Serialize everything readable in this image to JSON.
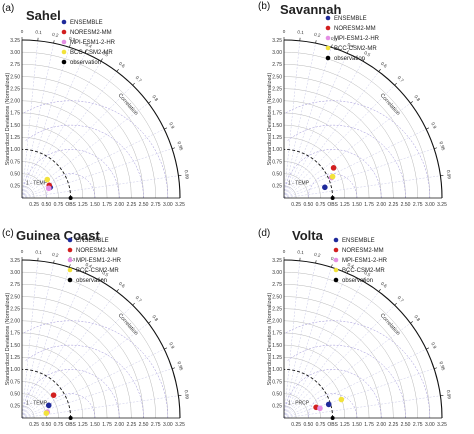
{
  "figure": {
    "ylabel": "Standardized Deviations (Normalized)",
    "correlation_label": "Correlation",
    "obs_label": "OBS",
    "legend": [
      {
        "label": "ENSEMBLE",
        "color": "#1f2a9a"
      },
      {
        "label": "NORESM2-MM",
        "color": "#d21f1f"
      },
      {
        "label": "MPI-ESM1-2-HR",
        "color": "#e48fe4"
      },
      {
        "label": "BCC-CSM2-MR",
        "color": "#f2e23a"
      },
      {
        "label": "observation",
        "color": "#000000"
      }
    ]
  },
  "chart_data": [
    {
      "type": "taylor",
      "panel": "(a)",
      "title": "Sahel",
      "variable": "1 - TEMP",
      "x_ticks": [
        "0.25",
        "0.50",
        "0.75",
        "OBS",
        "1.25",
        "1.50",
        "1.75",
        "2.00",
        "2.25",
        "2.50",
        "2.75",
        "3.00",
        "3.25"
      ],
      "y_ticks": [
        "0.25",
        "0.50",
        "0.75",
        "1.00",
        "1.25",
        "1.50",
        "1.75",
        "2.00",
        "2.25",
        "2.50",
        "2.75",
        "3.00",
        "3.25"
      ],
      "corr_ticks": [
        "0",
        "0.1",
        "0.2",
        "0.3",
        "0.4",
        "0.5",
        "0.6",
        "0.7",
        "0.8",
        "0.9",
        "0.95",
        "0.99"
      ],
      "max_sd": 3.25,
      "observation": {
        "sd": 1.0,
        "corr": 1.0
      },
      "points": [
        {
          "model": "ENSEMBLE",
          "x": 0.58,
          "y": 0.22
        },
        {
          "model": "NORESM2-MM",
          "x": 0.56,
          "y": 0.26
        },
        {
          "model": "MPI-ESM1-2-HR",
          "x": 0.55,
          "y": 0.2
        },
        {
          "model": "BCC-CSM2-MR",
          "x": 0.52,
          "y": 0.38
        }
      ]
    },
    {
      "type": "taylor",
      "panel": "(b)",
      "title": "Savannah",
      "variable": "1 - TEMP",
      "x_ticks": [
        "0.25",
        "0.50",
        "0.75",
        "OBS",
        "1.25",
        "1.50",
        "1.75",
        "2.00",
        "2.25",
        "2.50",
        "2.75",
        "3.00",
        "3.25"
      ],
      "y_ticks": [
        "0.25",
        "0.50",
        "0.75",
        "1.00",
        "1.25",
        "1.50",
        "1.75",
        "2.00",
        "2.25",
        "2.50",
        "2.75",
        "3.00",
        "3.25"
      ],
      "corr_ticks": [
        "0",
        "0.1",
        "0.2",
        "0.3",
        "0.4",
        "0.5",
        "0.6",
        "0.7",
        "0.8",
        "0.9",
        "0.95",
        "0.99"
      ],
      "max_sd": 3.25,
      "observation": {
        "sd": 1.0,
        "corr": 1.0
      },
      "points": [
        {
          "model": "ENSEMBLE",
          "x": 0.84,
          "y": 0.22
        },
        {
          "model": "NORESM2-MM",
          "x": 1.02,
          "y": 0.62
        },
        {
          "model": "MPI-ESM1-2-HR",
          "x": 0.98,
          "y": 0.42
        },
        {
          "model": "BCC-CSM2-MR",
          "x": 1.0,
          "y": 0.44
        }
      ]
    },
    {
      "type": "taylor",
      "panel": "(c)",
      "title": "Guinea Coast",
      "variable": "1 - TEMP",
      "x_ticks": [
        "0.25",
        "0.50",
        "0.75",
        "OBS",
        "1.25",
        "1.50",
        "1.75",
        "2.00",
        "2.25",
        "2.50",
        "2.75",
        "3.00",
        "3.25"
      ],
      "y_ticks": [
        "0.25",
        "0.50",
        "0.75",
        "1.00",
        "1.25",
        "1.50",
        "1.75",
        "2.00",
        "2.25",
        "2.50",
        "2.75",
        "3.00",
        "3.25"
      ],
      "corr_ticks": [
        "0",
        "0.1",
        "0.2",
        "0.3",
        "0.4",
        "0.5",
        "0.6",
        "0.7",
        "0.8",
        "0.9",
        "0.95",
        "0.99"
      ],
      "max_sd": 3.25,
      "observation": {
        "sd": 1.0,
        "corr": 1.0
      },
      "points": [
        {
          "model": "ENSEMBLE",
          "x": 0.55,
          "y": 0.26
        },
        {
          "model": "NORESM2-MM",
          "x": 0.65,
          "y": 0.47
        },
        {
          "model": "MPI-ESM1-2-HR",
          "x": 0.52,
          "y": 0.12
        },
        {
          "model": "BCC-CSM2-MR",
          "x": 0.5,
          "y": 0.1
        }
      ]
    },
    {
      "type": "taylor",
      "panel": "(d)",
      "title": "Volta",
      "variable": "1 - PRCP",
      "x_ticks": [
        "0.25",
        "0.50",
        "0.75",
        "OBS",
        "1.25",
        "1.50",
        "1.75",
        "2.00",
        "2.25",
        "2.50",
        "2.75",
        "3.00",
        "3.25"
      ],
      "y_ticks": [
        "0.25",
        "0.50",
        "0.75",
        "1.00",
        "1.25",
        "1.50",
        "1.75",
        "2.00",
        "2.25",
        "2.50",
        "2.75",
        "3.00",
        "3.25"
      ],
      "corr_ticks": [
        "0",
        "0.1",
        "0.2",
        "0.3",
        "0.4",
        "0.5",
        "0.6",
        "0.7",
        "0.8",
        "0.9",
        "0.95",
        "0.99"
      ],
      "max_sd": 3.25,
      "observation": {
        "sd": 1.0,
        "corr": 1.0
      },
      "points": [
        {
          "model": "ENSEMBLE",
          "x": 0.92,
          "y": 0.28
        },
        {
          "model": "NORESM2-MM",
          "x": 0.66,
          "y": 0.22
        },
        {
          "model": "MPI-ESM1-2-HR",
          "x": 0.74,
          "y": 0.2
        },
        {
          "model": "BCC-CSM2-MR",
          "x": 1.18,
          "y": 0.38
        }
      ]
    }
  ]
}
